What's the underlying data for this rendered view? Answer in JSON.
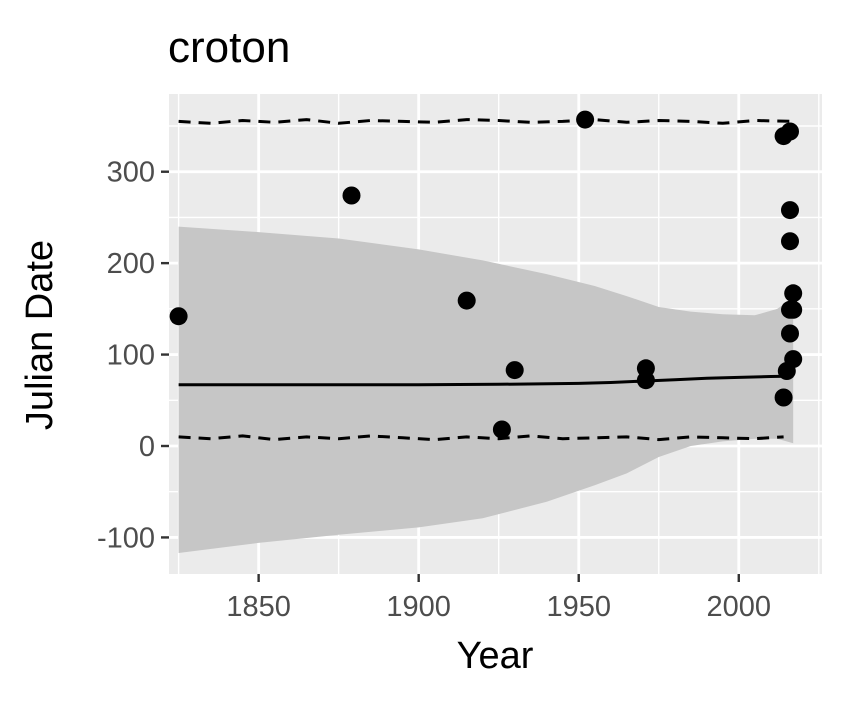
{
  "chart_data": {
    "type": "scatter",
    "title": "croton",
    "xlabel": "Year",
    "ylabel": "Julian Date",
    "xlim": [
      1822,
      2026
    ],
    "ylim": [
      -140,
      385
    ],
    "x_ticks": [
      1850,
      1900,
      1950,
      2000
    ],
    "y_ticks": [
      -100,
      0,
      100,
      200,
      300
    ],
    "x_tick_labels": [
      "1850",
      "1900",
      "1950",
      "2000"
    ],
    "y_tick_labels": [
      "-100",
      "0",
      "100",
      "200",
      "300"
    ],
    "grid": true,
    "points": [
      {
        "x": 1825,
        "y": 142
      },
      {
        "x": 1879,
        "y": 274
      },
      {
        "x": 1915,
        "y": 159
      },
      {
        "x": 1926,
        "y": 18
      },
      {
        "x": 1930,
        "y": 83
      },
      {
        "x": 1952,
        "y": 357
      },
      {
        "x": 1971,
        "y": 85
      },
      {
        "x": 1971,
        "y": 72
      },
      {
        "x": 2014,
        "y": 339
      },
      {
        "x": 2014,
        "y": 53
      },
      {
        "x": 2015,
        "y": 82
      },
      {
        "x": 2016,
        "y": 344
      },
      {
        "x": 2016,
        "y": 258
      },
      {
        "x": 2016,
        "y": 224
      },
      {
        "x": 2016,
        "y": 149
      },
      {
        "x": 2016,
        "y": 123
      },
      {
        "x": 2017,
        "y": 167
      },
      {
        "x": 2017,
        "y": 149
      },
      {
        "x": 2017,
        "y": 95
      }
    ],
    "fit_line": {
      "x": [
        1825,
        1850,
        1875,
        1900,
        1925,
        1950,
        1960,
        1970,
        1980,
        1990,
        2000,
        2010,
        2017
      ],
      "y": [
        67,
        67,
        67,
        67,
        67.5,
        68.5,
        69.5,
        71,
        72.5,
        74,
        75,
        76,
        76.5
      ]
    },
    "confidence_band": {
      "x": [
        1825,
        1850,
        1875,
        1900,
        1920,
        1940,
        1955,
        1965,
        1975,
        1985,
        1995,
        2005,
        2012,
        2017
      ],
      "upper": [
        240,
        234,
        227,
        215,
        203,
        188,
        175,
        164,
        152,
        147,
        144,
        143,
        150,
        162
      ],
      "lower": [
        -117,
        -106,
        -97,
        -89,
        -79,
        -61,
        -43,
        -30,
        -12,
        0,
        5,
        8,
        8,
        3
      ]
    },
    "upper_dashed": {
      "x": [
        1825,
        1835,
        1845,
        1855,
        1865,
        1875,
        1885,
        1895,
        1905,
        1915,
        1925,
        1935,
        1945,
        1955,
        1965,
        1975,
        1985,
        1995,
        2005,
        2017
      ],
      "y": [
        355,
        353,
        356,
        354,
        357,
        353,
        356,
        355,
        354,
        357,
        356,
        354,
        355,
        357,
        354,
        356,
        355,
        353,
        356,
        355
      ]
    },
    "lower_dashed": {
      "x": [
        1825,
        1835,
        1845,
        1855,
        1865,
        1875,
        1885,
        1895,
        1905,
        1915,
        1925,
        1935,
        1945,
        1955,
        1965,
        1975,
        1985,
        1995,
        2005,
        2014
      ],
      "y": [
        10,
        8,
        11,
        7,
        10,
        8,
        11,
        9,
        7,
        10,
        8,
        11,
        8,
        9,
        10,
        7,
        10,
        9,
        8,
        10
      ]
    }
  }
}
